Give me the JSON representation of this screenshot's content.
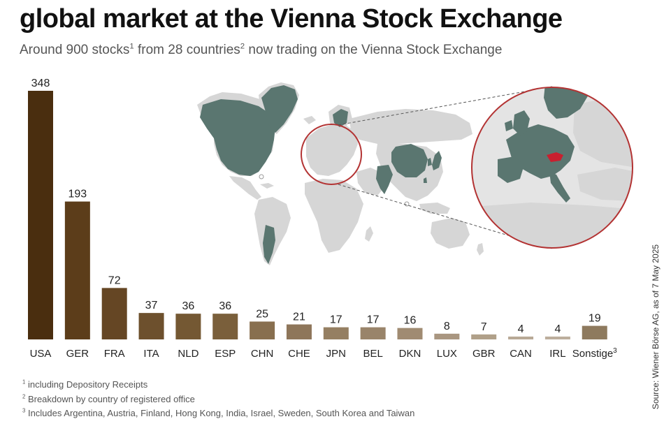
{
  "header": {
    "title": "global market at the Vienna Stock Exchange",
    "subtitle_pre": "Around 900 stocks",
    "subtitle_sup1": "1",
    "subtitle_mid": " from 28 countries",
    "subtitle_sup2": "2",
    "subtitle_post": " now trading on the Vienna Stock Exchange"
  },
  "chart_data": {
    "type": "bar",
    "categories": [
      "USA",
      "GER",
      "FRA",
      "ITA",
      "NLD",
      "ESP",
      "CHN",
      "CHE",
      "JPN",
      "BEL",
      "DKN",
      "LUX",
      "GBR",
      "CAN",
      "IRL",
      "Sonstige"
    ],
    "last_category_sup": "3",
    "values": [
      348,
      193,
      72,
      37,
      36,
      36,
      25,
      21,
      17,
      17,
      16,
      8,
      7,
      4,
      4,
      19
    ],
    "ylim": [
      0,
      348
    ],
    "grid": false,
    "legend": "none",
    "bar_colors": [
      "#4a2e0f",
      "#5c3d1a",
      "#654624",
      "#6d502d",
      "#745833",
      "#7a5f3b",
      "#886f4f",
      "#8e765a",
      "#957f62",
      "#99846a",
      "#a08b72",
      "#a99680",
      "#b0a089",
      "#b8a996",
      "#bcae9c",
      "#8e7a5e"
    ]
  },
  "map": {
    "highlight_color": "#5a7670",
    "land_color": "#d6d6d6",
    "circle_color": "#b33333",
    "austria_color": "#c8202f"
  },
  "footnotes": [
    {
      "mark": "1",
      "text": " including Depository Receipts"
    },
    {
      "mark": "2",
      "text": " Breakdown by country of registered office"
    },
    {
      "mark": "3",
      "text": " Includes Argentina, Austria, Finland, Hong Kong, India, Israel, Sweden, South Korea and Taiwan"
    }
  ],
  "source": "Source: Wiener Börse AG, as of 7 May 2025"
}
